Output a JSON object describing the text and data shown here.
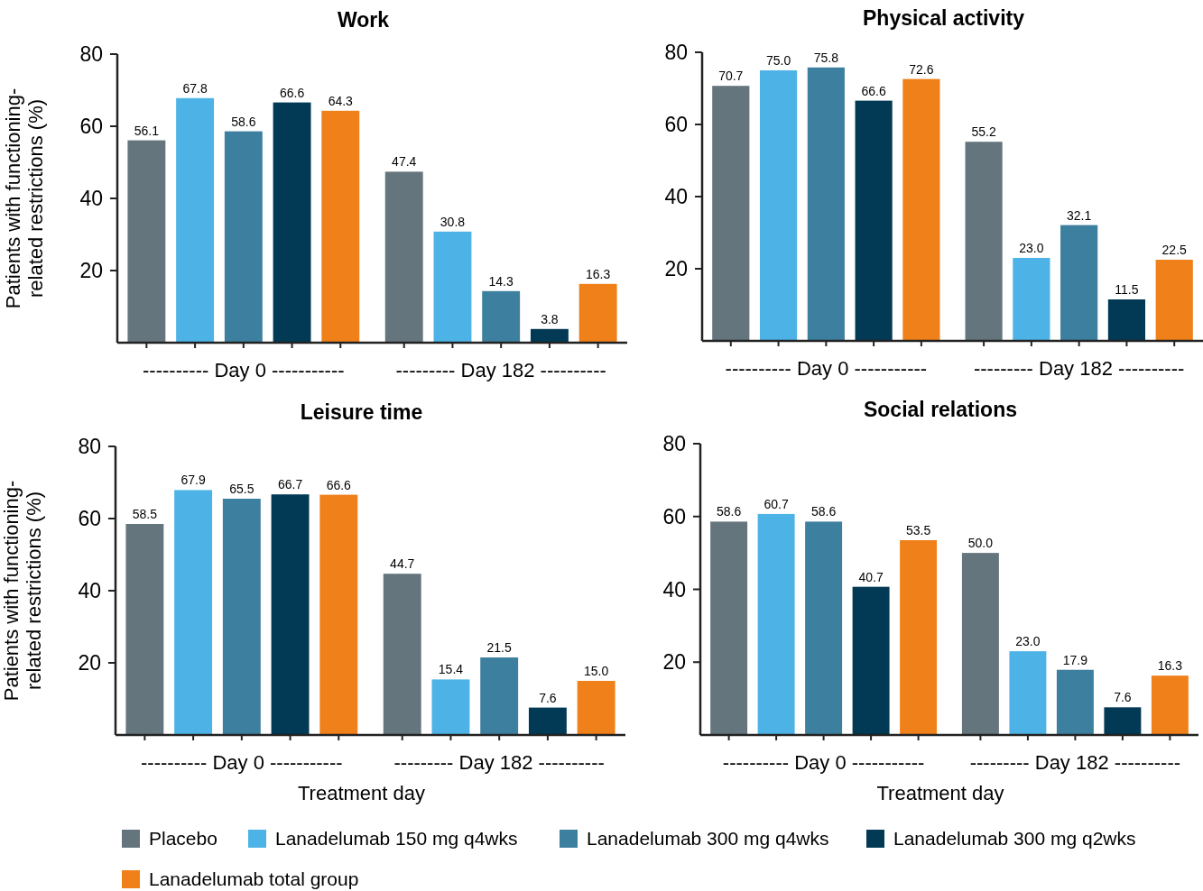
{
  "chart_data": [
    {
      "type": "bar",
      "title": "Work",
      "ylabel": "Patients with functioning-related restrictions (%)",
      "categories": [
        "---------- Day 0 -----------",
        "--------- Day 182 ----------"
      ],
      "ylim": [
        0,
        80
      ],
      "yticks": [
        20,
        40,
        60,
        80
      ],
      "legend": "bottom",
      "series": [
        {
          "name": "Placebo",
          "color": "#65757e",
          "values": [
            56.1,
            47.4
          ],
          "value_labels": [
            "56.1",
            "47.4"
          ]
        },
        {
          "name": "Lanadelumab 150 mg q4wks",
          "color": "#4db3e6",
          "values": [
            67.8,
            30.8
          ],
          "value_labels": [
            "67.8",
            "30.8"
          ]
        },
        {
          "name": "Lanadelumab 300 mg q4wks",
          "color": "#3d7f9f",
          "values": [
            58.6,
            14.3
          ],
          "value_labels": [
            "58.6",
            "14.3"
          ]
        },
        {
          "name": "Lanadelumab 300 mg q2wks",
          "color": "#023a55",
          "values": [
            66.6,
            3.8
          ],
          "value_labels": [
            "66.6",
            "3.8"
          ]
        },
        {
          "name": "Lanadelumab total group",
          "color": "#f08019",
          "values": [
            64.3,
            16.3
          ],
          "value_labels": [
            "64.3",
            "16.3"
          ]
        }
      ]
    },
    {
      "type": "bar",
      "title": "Physical activity",
      "categories": [
        "---------- Day 0 -----------",
        "--------- Day 182 ----------"
      ],
      "ylim": [
        0,
        80
      ],
      "yticks": [
        20,
        40,
        60,
        80
      ],
      "legend": "bottom",
      "series": [
        {
          "name": "Placebo",
          "color": "#65757e",
          "values": [
            70.7,
            55.2
          ],
          "value_labels": [
            "70.7",
            "55.2"
          ]
        },
        {
          "name": "Lanadelumab 150 mg q4wks",
          "color": "#4db3e6",
          "values": [
            75.0,
            23.0
          ],
          "value_labels": [
            "75.0",
            "23.0"
          ]
        },
        {
          "name": "Lanadelumab 300 mg q4wks",
          "color": "#3d7f9f",
          "values": [
            75.8,
            32.1
          ],
          "value_labels": [
            "75.8",
            "32.1"
          ]
        },
        {
          "name": "Lanadelumab 300 mg q2wks",
          "color": "#023a55",
          "values": [
            66.6,
            11.5
          ],
          "value_labels": [
            "66.6",
            "11.5"
          ]
        },
        {
          "name": "Lanadelumab total group",
          "color": "#f08019",
          "values": [
            72.6,
            22.5
          ],
          "value_labels": [
            "72.6",
            "22.5"
          ]
        }
      ]
    },
    {
      "type": "bar",
      "title": "Leisure time",
      "xlabel": "Treatment day",
      "ylabel": "Patients with functioning-related restrictions (%)",
      "categories": [
        "---------- Day 0 -----------",
        "--------- Day 182 ----------"
      ],
      "ylim": [
        0,
        80
      ],
      "yticks": [
        20,
        40,
        60,
        80
      ],
      "legend": "bottom",
      "series": [
        {
          "name": "Placebo",
          "color": "#65757e",
          "values": [
            58.5,
            44.7
          ],
          "value_labels": [
            "58.5",
            "44.7"
          ]
        },
        {
          "name": "Lanadelumab 150 mg q4wks",
          "color": "#4db3e6",
          "values": [
            67.9,
            15.4
          ],
          "value_labels": [
            "67.9",
            "15.4"
          ]
        },
        {
          "name": "Lanadelumab 300 mg q4wks",
          "color": "#3d7f9f",
          "values": [
            65.5,
            21.5
          ],
          "value_labels": [
            "65.5",
            "21.5"
          ]
        },
        {
          "name": "Lanadelumab 300 mg q2wks",
          "color": "#023a55",
          "values": [
            66.7,
            7.6
          ],
          "value_labels": [
            "66.7",
            "7.6"
          ]
        },
        {
          "name": "Lanadelumab total group",
          "color": "#f08019",
          "values": [
            66.6,
            15.0
          ],
          "value_labels": [
            "66.6",
            "15.0"
          ]
        }
      ]
    },
    {
      "type": "bar",
      "title": "Social relations",
      "xlabel": "Treatment day",
      "categories": [
        "---------- Day 0 -----------",
        "--------- Day 182 ----------"
      ],
      "ylim": [
        0,
        80
      ],
      "yticks": [
        20,
        40,
        60,
        80
      ],
      "legend": "bottom",
      "series": [
        {
          "name": "Placebo",
          "color": "#65757e",
          "values": [
            58.6,
            50.0
          ],
          "value_labels": [
            "58.6",
            "50.0"
          ]
        },
        {
          "name": "Lanadelumab 150 mg q4wks",
          "color": "#4db3e6",
          "values": [
            60.7,
            23.0
          ],
          "value_labels": [
            "60.7",
            "23.0"
          ]
        },
        {
          "name": "Lanadelumab 300 mg q4wks",
          "color": "#3d7f9f",
          "values": [
            58.6,
            17.9
          ],
          "value_labels": [
            "58.6",
            "17.9"
          ]
        },
        {
          "name": "Lanadelumab 300 mg q2wks",
          "color": "#023a55",
          "values": [
            40.7,
            7.6
          ],
          "value_labels": [
            "40.7",
            "7.6"
          ]
        },
        {
          "name": "Lanadelumab total group",
          "color": "#f08019",
          "values": [
            53.5,
            16.3
          ],
          "value_labels": [
            "53.5",
            "16.3"
          ]
        }
      ]
    }
  ]
}
